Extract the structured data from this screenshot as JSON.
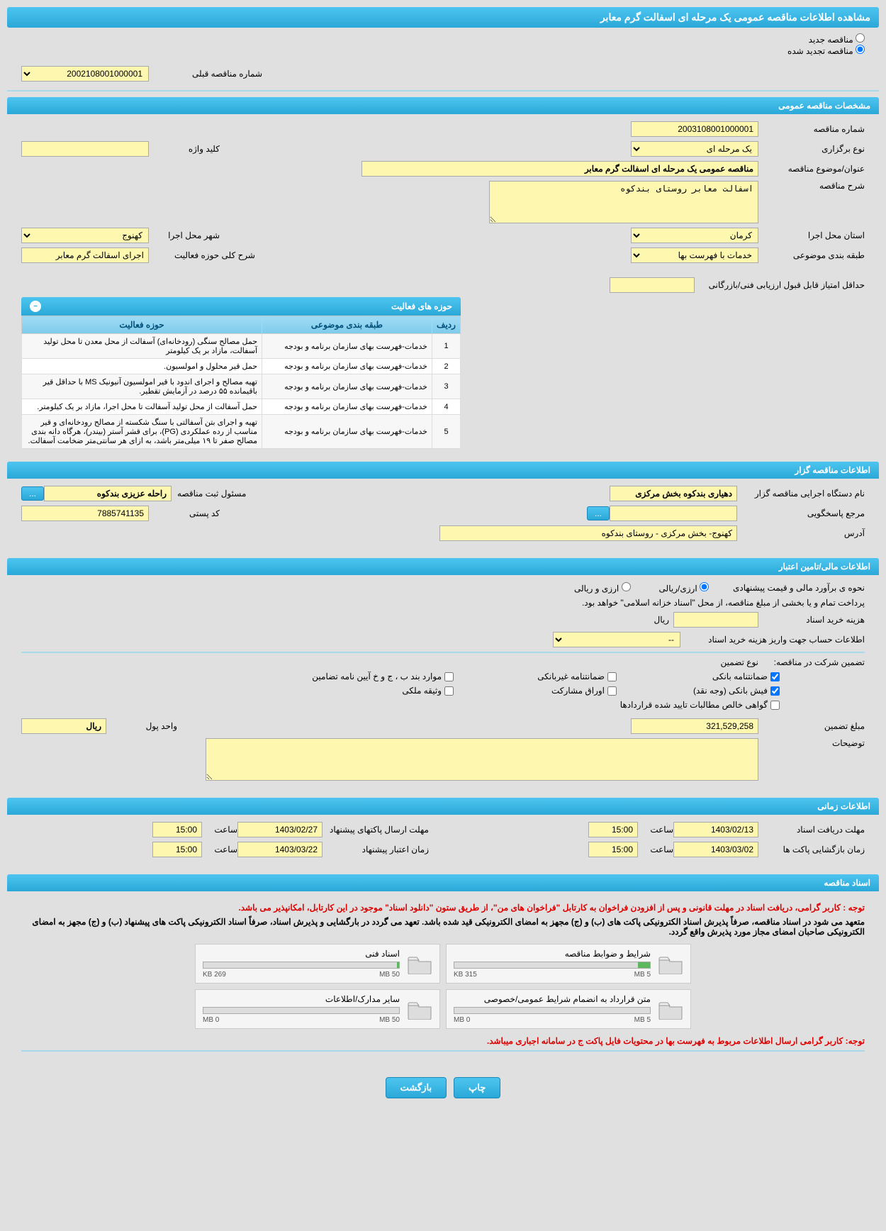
{
  "page_title": "مشاهده اطلاعات مناقصه عمومی یک مرحله ای اسفالت گرم معابر",
  "tender_type": {
    "new_label": "مناقصه جدید",
    "renewed_label": "مناقصه تجدید شده",
    "prev_number_label": "شماره مناقصه قبلی",
    "prev_number": "2002108001000001"
  },
  "sections": {
    "general": "مشخصات مناقصه عمومی",
    "activity": "حوزه های فعالیت",
    "organizer": "اطلاعات مناقصه گزار",
    "financial": "اطلاعات مالی/تامین اعتبار",
    "timing": "اطلاعات زمانی",
    "documents": "اسناد مناقصه"
  },
  "general": {
    "number_label": "شماره مناقصه",
    "number": "2003108001000001",
    "type_label": "نوع برگزاری",
    "type": "یک مرحله ای",
    "keyword_label": "کلید واژه",
    "keyword": "",
    "title_label": "عنوان/موضوع مناقصه",
    "title": "مناقصه عمومی یک مرحله ای اسفالت گرم معابر",
    "desc_label": "شرح مناقصه",
    "desc": "اسفالت معابر روستای بندکوه",
    "province_label": "استان محل اجرا",
    "province": "کرمان",
    "city_label": "شهر محل اجرا",
    "city": "کهنوج",
    "category_label": "طبقه بندی موضوعی",
    "category": "خدمات با فهرست بها",
    "scope_label": "شرح کلی حوزه فعالیت",
    "scope": "اجرای اسفالت گرم معابر",
    "min_score_label": "حداقل امتیاز قابل قبول ارزیابی فنی/بازرگانی",
    "min_score": ""
  },
  "activity": {
    "cols": {
      "row": "ردیف",
      "category": "طبقه بندی موضوعی",
      "scope": "حوزه فعالیت"
    },
    "rows": [
      {
        "n": "1",
        "cat": "خدمات-فهرست بهای سازمان برنامه و بودجه",
        "scope": "حمل مصالح سنگی (رودخانه‌ای) آسفالت از محل معدن تا محل تولید آسفالت، مازاد بر یک کیلومتر"
      },
      {
        "n": "2",
        "cat": "خدمات-فهرست بهای سازمان برنامه و بودجه",
        "scope": "حمل قیر محلول و امولسیون."
      },
      {
        "n": "3",
        "cat": "خدمات-فهرست بهای سازمان برنامه و بودجه",
        "scope": "تهیه مصالح و اجرای اندود با قیر امولسیون آنیونیک MS با حداقل قیر باقیمانده ۵۵ درصد در آزمایش تقطیر."
      },
      {
        "n": "4",
        "cat": "خدمات-فهرست بهای سازمان برنامه و بودجه",
        "scope": "حمل آسفالت از محل تولید آسفالت تا محل اجرا، مازاد بر یک کیلومتر."
      },
      {
        "n": "5",
        "cat": "خدمات-فهرست بهای سازمان برنامه و بودجه",
        "scope": "تهیه و اجرای بتن آسفالتی با سنگ شکسته از مصالح رودخانه‌ای و قیر مناسب از رده عملکردی (PG)، برای قشر آستر (بیندر)، هرگاه دانه بندی مصالح صفر تا ۱۹ میلی‌متر باشد، به ازای هر سانتی‌متر ضخامت آسفالت."
      }
    ]
  },
  "organizer": {
    "exec_label": "نام دستگاه اجرایی مناقصه گزار",
    "exec": "دهیاری بندکوه بخش مرکزی",
    "reg_label": "مسئول ثبت مناقصه",
    "reg": "راحله عزیزی بندکوه",
    "ref_label": "مرجع پاسخگویی",
    "ref": "",
    "post_label": "کد پستی",
    "post": "7885741135",
    "addr_label": "آدرس",
    "addr": "کهنوج- بخش مرکزی - روستای بندکوه"
  },
  "financial": {
    "estimate_label": "نحوه ی برآورد مالی و قیمت پیشنهادی",
    "opt_rial": "ارزی/ریالی",
    "opt_currency": "ارزی و ریالی",
    "payment_note": "پرداخت تمام و یا بخشی از مبلغ مناقصه، از محل \"اسناد خزانه اسلامی\" خواهد بود.",
    "doc_cost_label": "هزینه خرید اسناد",
    "doc_cost": "",
    "currency_unit": "ریال",
    "account_label": "اطلاعات حساب جهت واریز هزینه خرید اسناد",
    "account": "--",
    "guarantee_label": "تضمین شرکت در مناقصه:",
    "guarantee_type_label": "نوع تضمین",
    "chk": {
      "bank": "ضمانتنامه بانکی",
      "nonbank": "ضمانتنامه غیربانکی",
      "bonds": "موارد بند ب ، ج و خ آیین نامه تضامین",
      "cash": "فیش بانکی (وجه نقد)",
      "stocks": "اوراق مشارکت",
      "property": "وثیقه ملکی",
      "certificate": "گواهی خالص مطالبات تایید شده قراردادها"
    },
    "amount_label": "مبلغ تضمین",
    "amount": "321,529,258",
    "unit_label": "واحد پول",
    "unit": "ریال",
    "notes_label": "توضیحات",
    "notes": ""
  },
  "timing": {
    "doc_deadline_label": "مهلت دریافت اسناد",
    "doc_deadline_date": "1403/02/13",
    "doc_deadline_time": "15:00",
    "bid_send_label": "مهلت ارسال پاکتهای پیشنهاد",
    "bid_send_date": "1403/02/27",
    "bid_send_time": "15:00",
    "open_label": "زمان بازگشایی پاکت ها",
    "open_date": "1403/03/02",
    "open_time": "15:00",
    "valid_label": "زمان اعتبار پیشنهاد",
    "valid_date": "1403/03/22",
    "valid_time": "15:00",
    "time_label": "ساعت"
  },
  "documents": {
    "note1": "توجه : کاربر گرامی، دریافت اسناد در مهلت قانونی و پس از افزودن فراخوان به کارتابل \"فراخوان های من\"، از طریق ستون \"دانلود اسناد\" موجود در این کارتابل، امکانپذیر می باشد.",
    "note2": "متعهد می شود در اسناد مناقصه، صرفاً پذیرش اسناد الکترونیکی پاکت های (ب) و (ج) مجهز به امضای الکترونیکی قید شده باشد. تعهد می گردد در بارگشایی و پذیرش اسناد، صرفاً اسناد الکترونیکی پاکت های پیشنهاد (ب) و (ج) مجهز به امضای الکترونیکی صاحبان امضای مجاز مورد پذیرش واقع گردد.",
    "note3": "توجه: کاربر گرامی ارسال اطلاعات مربوط به فهرست بها در محتویات فایل پاکت ج در سامانه اجباری میباشد.",
    "files": [
      {
        "title": "شرایط و ضوابط مناقصه",
        "used": "315 KB",
        "total": "5 MB",
        "pct": 6
      },
      {
        "title": "اسناد فنی",
        "used": "269 KB",
        "total": "50 MB",
        "pct": 1
      },
      {
        "title": "متن قرارداد به انضمام شرایط عمومی/خصوصی",
        "used": "0 MB",
        "total": "5 MB",
        "pct": 0
      },
      {
        "title": "سایر مدارک/اطلاعات",
        "used": "0 MB",
        "total": "50 MB",
        "pct": 0
      }
    ]
  },
  "buttons": {
    "print": "چاپ",
    "back": "بازگشت"
  },
  "colors": {
    "header_bg": "#2aa8d8",
    "field_bg": "#fdf7b0",
    "page_bg": "#e0e0e0",
    "note_red": "#d00",
    "progress_green": "#5cb85c"
  }
}
